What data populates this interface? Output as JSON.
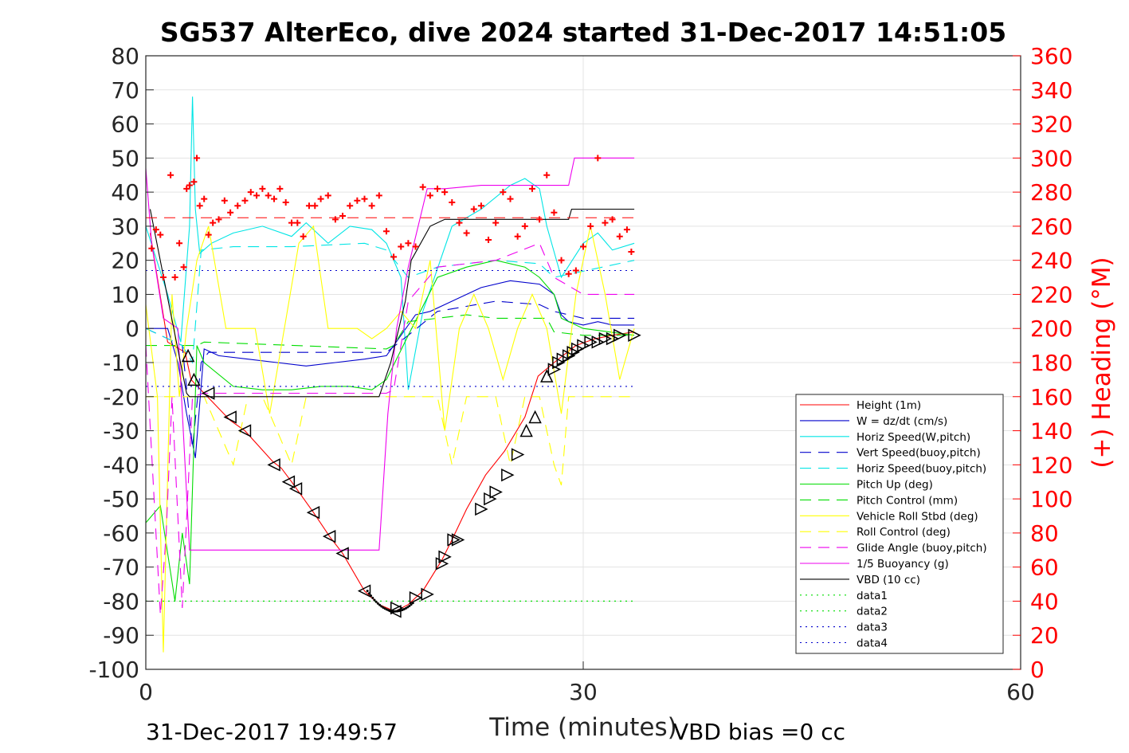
{
  "chart_data": {
    "type": "line",
    "title": "SG537 AlterEco, dive 2024 started 31-Dec-2017 14:51:05",
    "xlabel": "Time (minutes)",
    "ylabel": "",
    "y2label": "(+) Heading (°M)",
    "xlim": [
      0,
      60
    ],
    "ylim": [
      -100,
      80
    ],
    "y2lim": [
      0,
      360
    ],
    "xticks": [
      "0",
      "30",
      "60"
    ],
    "yticks": [
      "80",
      "70",
      "60",
      "50",
      "40",
      "30",
      "20",
      "10",
      "0",
      "-10",
      "-20",
      "-30",
      "-40",
      "-50",
      "-60",
      "-70",
      "-80",
      "-90",
      "-100"
    ],
    "y2ticks": [
      "360",
      "340",
      "320",
      "300",
      "280",
      "260",
      "240",
      "220",
      "200",
      "180",
      "160",
      "140",
      "120",
      "100",
      "80",
      "60",
      "40",
      "20",
      "0"
    ],
    "grid": true,
    "legend_position": "lower-right",
    "footer_left": "31-Dec-2017 19:49:57",
    "footer_right": "VBD bias =0 cc",
    "series": [
      {
        "name": "Height (1m)",
        "color": "#ff0000",
        "style": "solid",
        "x": [
          0.3,
          1.5,
          2.7,
          3.1,
          4.0,
          5.8,
          6.8,
          8.7,
          9.3,
          10.0,
          11.5,
          12.6,
          13.5,
          15.0,
          16.0,
          17.1,
          18.0,
          19.0,
          20.3,
          21.0,
          22.0,
          23.3,
          24.6,
          26.0,
          26.9,
          28.0,
          29.5,
          30.8,
          32.0,
          33.5
        ],
        "y": [
          28,
          -4,
          -7,
          -15,
          -19,
          -27,
          -30,
          -39,
          -41,
          -45,
          -54,
          -61,
          -66,
          -77,
          -81,
          -83,
          -81,
          -77,
          -68,
          -62,
          -53,
          -43,
          -36,
          -26,
          -14,
          -10,
          -5,
          -3,
          -2,
          -1
        ]
      },
      {
        "name": "W = dz/dt (cm/s)",
        "color": "#0000cc",
        "style": "solid",
        "x": [
          0,
          1.5,
          2.2,
          2.8,
          3.4,
          4,
          5,
          7,
          9,
          11,
          13,
          15,
          16.5,
          17.5,
          18.5,
          19.5,
          21,
          23,
          25,
          27,
          28,
          28.5,
          29,
          30,
          31,
          32,
          33.5
        ],
        "y": [
          0,
          0,
          -10,
          -25,
          -38,
          -6,
          -8,
          -9,
          -10,
          -11,
          -10,
          -9,
          -8,
          -2,
          4,
          5,
          8,
          12,
          14,
          13,
          10,
          4,
          2,
          1,
          2,
          1,
          1
        ]
      },
      {
        "name": "Horiz Speed(W,pitch)",
        "color": "#00e5e5",
        "style": "solid",
        "x": [
          0,
          1.5,
          2.4,
          3.0,
          3.2,
          3.4,
          3.7,
          4.5,
          6,
          8,
          10,
          11,
          12.5,
          14,
          15.5,
          16.5,
          17.5,
          18,
          19,
          21,
          23,
          25,
          26,
          27,
          27.5,
          28.5,
          30,
          31,
          32,
          33.5
        ],
        "y": [
          30,
          10,
          -4,
          30,
          68,
          35,
          22,
          25,
          28,
          30,
          27,
          31,
          25,
          30,
          29,
          25,
          15,
          -18,
          5,
          30,
          35,
          42,
          44,
          41,
          30,
          15,
          25,
          28,
          23,
          25
        ]
      },
      {
        "name": "Vert Speed(buoy,pitch)",
        "color": "#0000cc",
        "style": "dash",
        "x": [
          0,
          2.5,
          3.2,
          3.8,
          4.3,
          6,
          10,
          15,
          16.5,
          18,
          20,
          24,
          27,
          28,
          30,
          33.5
        ],
        "y": [
          0,
          -5,
          -35,
          -10,
          -7,
          -7,
          -7,
          -7,
          -7,
          -2,
          5,
          8,
          7,
          5,
          3,
          3
        ]
      },
      {
        "name": "Horiz Speed(buoy,pitch)",
        "color": "#00e5e5",
        "style": "dash",
        "x": [
          0,
          2.5,
          3.2,
          3.8,
          6,
          10,
          15,
          16.5,
          18,
          20,
          24,
          27,
          28,
          33.5
        ],
        "y": [
          0,
          -5,
          -10,
          23,
          24,
          24,
          25,
          23,
          15,
          18,
          20,
          19,
          15,
          20
        ]
      },
      {
        "name": "Pitch Up (deg)",
        "color": "#00dd00",
        "style": "solid",
        "x": [
          0,
          1,
          2,
          2.5,
          3,
          3.5,
          4,
          6,
          8,
          10,
          12,
          14,
          15.5,
          16.5,
          18,
          20,
          22,
          24,
          26,
          27,
          28,
          28.5,
          30,
          33.5
        ],
        "y": [
          -57,
          -52,
          -80,
          -60,
          -75,
          -5,
          -10,
          -17,
          -18,
          -18,
          -17,
          -17,
          -18,
          -15,
          -2,
          15,
          18,
          20,
          18,
          15,
          10,
          3,
          0,
          -2
        ]
      },
      {
        "name": "Pitch Control (mm)",
        "color": "#00dd00",
        "style": "dash",
        "x": [
          0,
          3.5,
          4,
          16.5,
          17,
          18,
          20,
          22,
          24,
          26,
          27.5,
          28,
          30,
          33.5
        ],
        "y": [
          -5,
          -5,
          -4,
          -6,
          -5,
          2,
          3,
          4,
          3,
          3,
          3,
          -1,
          -2,
          -2
        ]
      },
      {
        "name": "Vehicle Roll Stbd (deg)",
        "color": "#ffff00",
        "style": "solid",
        "x": [
          0,
          0.8,
          1.2,
          1.8,
          2.3,
          2.8,
          3.5,
          4.3,
          5.5,
          6.5,
          7.5,
          8.5,
          9.5,
          10.5,
          11.5,
          12.5,
          13.5,
          14.5,
          15.5,
          16.5,
          17.5,
          18.5,
          19.5,
          20.5,
          21.5,
          22.5,
          23.5,
          24.5,
          25.5,
          26.5,
          27.5,
          28.5,
          29.5,
          30.5,
          31.5,
          32.5,
          33.5
        ],
        "y": [
          7,
          -20,
          -95,
          10,
          -20,
          0,
          20,
          30,
          0,
          0,
          0,
          -25,
          0,
          25,
          30,
          0,
          0,
          0,
          -3,
          0,
          5,
          0,
          20,
          -30,
          0,
          10,
          0,
          -15,
          0,
          10,
          0,
          -25,
          10,
          30,
          10,
          -15,
          0
        ]
      },
      {
        "name": "Roll Control (deg)",
        "color": "#ffff00",
        "style": "dash",
        "x": [
          0,
          2,
          3,
          4,
          6,
          7,
          8,
          10,
          11,
          12,
          14,
          16,
          18,
          20,
          21,
          22,
          24,
          25,
          26,
          27,
          28,
          28.5,
          29,
          30,
          31,
          32,
          33.5
        ],
        "y": [
          -20,
          -20,
          -20,
          -20,
          -40,
          -20,
          -20,
          -40,
          -20,
          -20,
          -20,
          -20,
          -20,
          -20,
          -40,
          -20,
          -20,
          -40,
          -20,
          -20,
          -40,
          -46,
          -20,
          -20,
          -20,
          -20,
          -20
        ]
      },
      {
        "name": "Glide Angle (buoy,pitch)",
        "color": "#ee00ee",
        "style": "dash",
        "x": [
          0,
          1,
          1.4,
          1.8,
          2.5,
          3.2,
          4,
          6,
          10,
          15,
          16.5,
          17,
          18,
          20,
          24,
          27,
          28,
          30,
          33.5
        ],
        "y": [
          -5,
          -84,
          -60,
          -20,
          -82,
          -20,
          -19,
          -19,
          -19,
          -19,
          -19,
          -18,
          8,
          18,
          20,
          25,
          15,
          10,
          10
        ]
      },
      {
        "name": "1/5 Buoyancy (g)",
        "color": "#ee00ee",
        "style": "solid",
        "x": [
          0,
          0.4,
          1.2,
          2.2,
          3.0,
          16.0,
          16.6,
          17.2,
          18.0,
          19.3,
          20.5,
          23,
          27,
          29,
          29.4,
          33.5
        ],
        "y": [
          47,
          25,
          3,
          0,
          -65,
          -65,
          -25,
          0,
          18,
          41,
          41,
          42,
          42,
          42,
          50,
          50
        ]
      },
      {
        "name": "VBD (10 cc)",
        "color": "#000000",
        "style": "solid",
        "x": [
          0.3,
          1.5,
          2.8,
          3.0,
          16.0,
          16.8,
          17.8,
          18.2,
          19.5,
          20.5,
          29.0,
          29.2,
          33.5
        ],
        "y": [
          35,
          9,
          -19,
          -20,
          -20,
          -10,
          8,
          20,
          30,
          32,
          32,
          35,
          35
        ]
      },
      {
        "name": "data1",
        "color": "#00dd00",
        "style": "dot",
        "x": [
          0,
          33.5
        ],
        "y": [
          -80,
          -80
        ]
      },
      {
        "name": "data2",
        "color": "#00dd00",
        "style": "dot",
        "x": [
          0,
          33.5
        ],
        "y": [
          -80,
          -80
        ]
      },
      {
        "name": "data3",
        "color": "#0000cc",
        "style": "dot",
        "x": [
          0,
          33.5
        ],
        "y": [
          17,
          17
        ]
      },
      {
        "name": "data4",
        "color": "#0000cc",
        "style": "dot",
        "x": [
          0,
          33.5
        ],
        "y": [
          -17,
          -17
        ]
      }
    ],
    "reference_lines": [
      {
        "axis": "y2",
        "value": 265,
        "color": "#ff0000",
        "style": "dash",
        "x": [
          0,
          33.5
        ]
      }
    ],
    "heading_points": {
      "color": "#ff0000",
      "marker": "plus",
      "axis": "y2",
      "x": [
        0.4,
        0.7,
        1.0,
        1.2,
        1.7,
        2.0,
        2.3,
        2.6,
        2.8,
        3.0,
        3.3,
        3.5,
        3.7,
        4.0,
        4.3,
        4.6,
        5.0,
        5.4,
        5.8,
        6.3,
        6.8,
        7.2,
        7.6,
        8.0,
        8.4,
        8.8,
        9.2,
        9.6,
        10.0,
        10.4,
        10.8,
        11.2,
        11.6,
        12.0,
        12.5,
        13.0,
        13.5,
        14.0,
        14.5,
        15.0,
        15.5,
        16.0,
        16.5,
        17.0,
        17.5,
        18.0,
        18.5,
        19.0,
        19.5,
        20.0,
        20.5,
        21.0,
        21.5,
        22.0,
        22.5,
        23.0,
        23.5,
        24.0,
        24.5,
        25.0,
        25.5,
        26.0,
        26.5,
        27.0,
        27.5,
        28.0,
        28.5,
        29.0,
        29.5,
        30.0,
        30.5,
        31.0,
        31.5,
        32.0,
        32.5,
        33.0,
        33.3
      ],
      "y": [
        247,
        258,
        255,
        230,
        290,
        230,
        250,
        236,
        282,
        284,
        286,
        300,
        272,
        276,
        255,
        262,
        264,
        275,
        268,
        272,
        275,
        280,
        278,
        282,
        278,
        276,
        282,
        274,
        262,
        262,
        254,
        272,
        272,
        276,
        278,
        264,
        266,
        272,
        275,
        276,
        272,
        278,
        257,
        242,
        248,
        250,
        248,
        283,
        278,
        282,
        280,
        274,
        262,
        256,
        270,
        272,
        252,
        262,
        280,
        276,
        254,
        260,
        282,
        264,
        290,
        268,
        240,
        232,
        234,
        248,
        260,
        300,
        262,
        264,
        254,
        258,
        245
      ]
    },
    "descent_markers": {
      "marker": "triangle",
      "color": "#000000",
      "x": [
        2.9,
        3.3,
        4.3,
        5.8,
        6.8,
        8.8,
        9.8,
        10.3,
        11.5,
        12.6,
        13.5,
        15.0,
        17.1
      ],
      "y": [
        -8,
        -15,
        -19,
        -26,
        -30,
        -40,
        -45,
        -47,
        -54,
        -61,
        -66,
        -77,
        -83
      ]
    },
    "ascent_markers": {
      "marker": "triangle",
      "color": "#000000",
      "x": [
        17.2,
        18.5,
        19.3,
        20.3,
        20.5,
        21.1,
        21.4,
        23.0,
        23.6,
        24.0,
        24.8,
        25.5,
        26.1,
        26.7,
        27.5,
        28.0,
        28.3,
        28.6,
        29.0,
        29.3,
        29.6,
        30.0,
        30.5,
        31.0,
        31.5,
        32.0,
        32.5,
        33.5
      ],
      "y": [
        -82,
        -79,
        -78,
        -69,
        -67,
        -62,
        -62,
        -53,
        -50,
        -48,
        -43,
        -37,
        -30,
        -26,
        -14,
        -12,
        -10,
        -9,
        -8,
        -7,
        -6,
        -5,
        -4,
        -4,
        -3,
        -3,
        -2,
        -2
      ]
    }
  }
}
